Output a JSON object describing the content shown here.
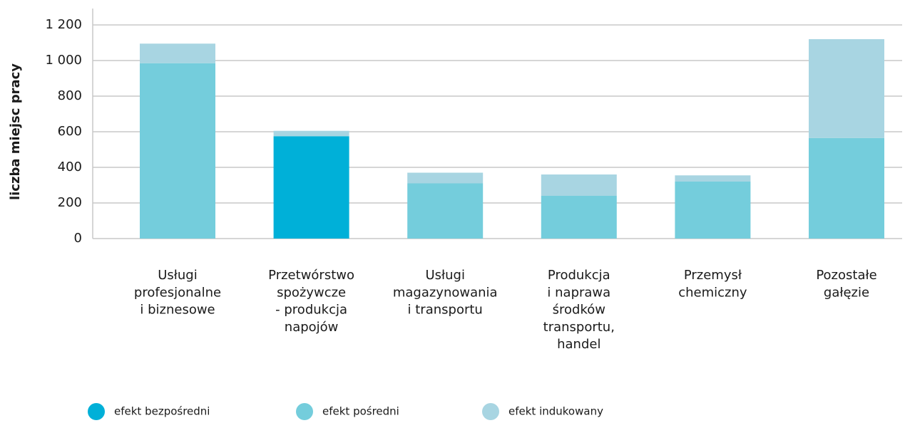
{
  "chart_data": {
    "type": "stacked_bar",
    "y_label": "liczba miejsc pracy",
    "categories": [
      "Usługi\nprofesjonalne\ni biznesowe",
      "Przetwórstwo\nspożywcze\n- produkcja\nnapojów",
      "Usługi\nmagazynowania\ni transportu",
      "Produkcja\ni naprawa\nśrodków\ntransportu,\nhandel",
      "Przemysł\nchemiczny",
      "Pozostałe\ngałęzie"
    ],
    "series": [
      {
        "name": "efekt bezpośredni",
        "color": "#00b0d8",
        "values": [
          0,
          575,
          0,
          0,
          0,
          0
        ]
      },
      {
        "name": "efekt pośredni",
        "color": "#74cddc",
        "values": [
          985,
          0,
          310,
          240,
          320,
          565
        ]
      },
      {
        "name": "efekt indukowany",
        "color": "#a8d5e2",
        "values": [
          110,
          30,
          60,
          120,
          35,
          555
        ]
      }
    ],
    "ylim": [
      0,
      1200
    ],
    "yticks": [
      0,
      200,
      400,
      600,
      800,
      {
        "value": 1000,
        "label": "1 000"
      },
      {
        "value": 1200,
        "label": "1 200"
      }
    ],
    "grid": true,
    "legend": "bottom"
  }
}
